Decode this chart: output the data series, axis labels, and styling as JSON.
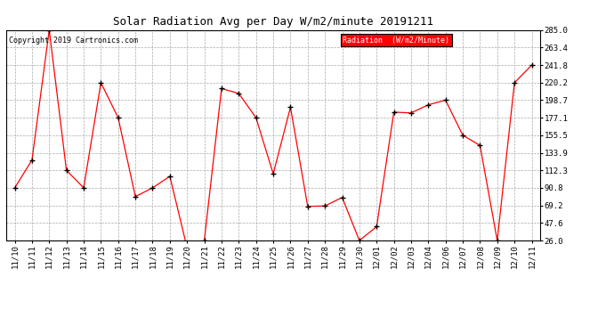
{
  "title": "Solar Radiation Avg per Day W/m2/minute 20191211",
  "copyright": "Copyright 2019 Cartronics.com",
  "legend_label": "Radiation  (W/m2/Minute)",
  "dates": [
    "11/10",
    "11/11",
    "11/12",
    "11/13",
    "11/14",
    "11/15",
    "11/16",
    "11/17",
    "11/18",
    "11/19",
    "11/20",
    "11/21",
    "11/22",
    "11/23",
    "11/24",
    "11/25",
    "11/26",
    "11/27",
    "11/28",
    "11/29",
    "11/30",
    "12/01",
    "12/02",
    "12/03",
    "12/04",
    "12/06",
    "12/07",
    "12/08",
    "12/09",
    "12/10",
    "12/11"
  ],
  "values": [
    90.8,
    125.0,
    285.0,
    112.3,
    90.8,
    220.2,
    177.1,
    80.0,
    90.8,
    105.0,
    17.0,
    26.0,
    213.0,
    207.0,
    177.1,
    108.0,
    190.0,
    68.0,
    68.5,
    79.0,
    26.0,
    43.0,
    184.0,
    183.0,
    193.0,
    198.7,
    155.5,
    143.0,
    26.0,
    220.2,
    241.8
  ],
  "ylim_min": 26.0,
  "ylim_max": 285.0,
  "yticks": [
    26.0,
    47.6,
    69.2,
    90.8,
    112.3,
    133.9,
    155.5,
    177.1,
    198.7,
    220.2,
    241.8,
    263.4,
    285.0
  ],
  "line_color": "red",
  "marker_color": "black",
  "background_color": "white",
  "grid_color": "#aaaaaa",
  "legend_bg": "red",
  "legend_text_color": "white",
  "title_fontsize": 9,
  "tick_fontsize": 6.5,
  "copyright_fontsize": 6
}
